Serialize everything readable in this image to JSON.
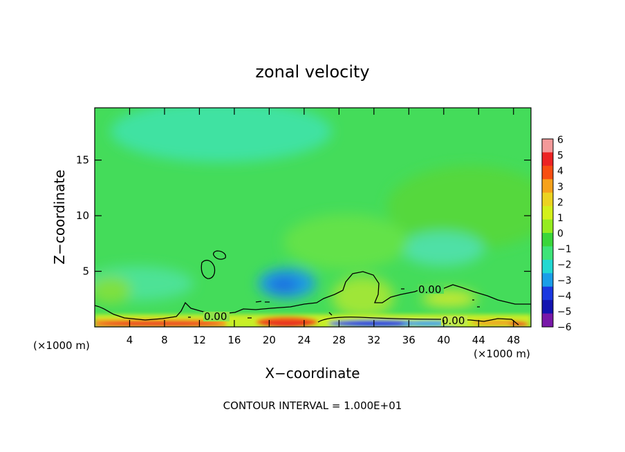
{
  "chart_data": {
    "type": "heatmap",
    "title": "zonal velocity",
    "xlabel": "X−coordinate",
    "ylabel": "Z−coordinate",
    "x_unit": "(×1000 m)",
    "x_unit_right": "(×1000 m)",
    "footer": "CONTOUR INTERVAL = 1.000E+01",
    "xlim": [
      0,
      50
    ],
    "ylim": [
      0,
      19.7
    ],
    "x_ticks": [
      4,
      8,
      12,
      16,
      20,
      24,
      28,
      32,
      36,
      40,
      44,
      48
    ],
    "y_ticks": [
      5,
      10,
      15
    ],
    "colorbar": {
      "range": [
        -6,
        6
      ],
      "tick_labels": [
        "6",
        "5",
        "4",
        "3",
        "2",
        "1",
        "0",
        "−1",
        "−2",
        "−3",
        "−4",
        "−5",
        "−6"
      ],
      "colors": [
        "#f49a9a",
        "#ec2424",
        "#f84e12",
        "#f7a21b",
        "#ecd320",
        "#d4f01a",
        "#95ec20",
        "#3ad63a",
        "#3ee478",
        "#22d8d2",
        "#1a9ee8",
        "#1a38e0",
        "#1414b0",
        "#7818a8"
      ]
    },
    "contour_labels": [
      {
        "text": "0.00",
        "x": 13.6,
        "z": 1.0
      },
      {
        "text": "0.00",
        "x": 38.3,
        "z": 3.4
      },
      {
        "text": "0.00",
        "x": 40.3,
        "z": 0.6
      }
    ]
  }
}
